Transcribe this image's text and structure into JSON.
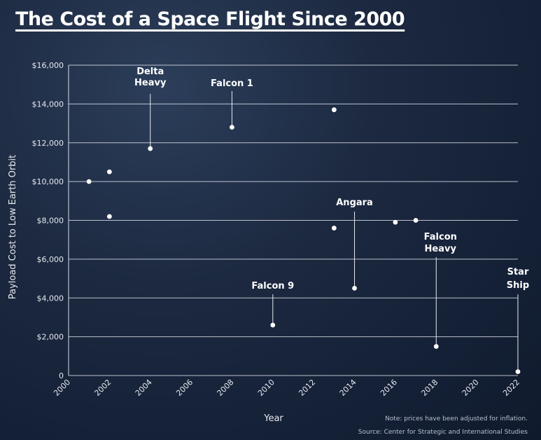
{
  "title": "The Cost of a Space Flight Since 2000",
  "chart_data": {
    "type": "scatter",
    "title": "The Cost of a Space Flight Since 2000",
    "xlabel": "Year",
    "ylabel": "Payload Cost to Low Earth Orbit",
    "xlim": [
      2000,
      2022
    ],
    "ylim": [
      0,
      16000
    ],
    "x_ticks": [
      "2000",
      "2002",
      "2004",
      "2006",
      "2008",
      "2010",
      "2012",
      "2014",
      "2016",
      "2018",
      "2020",
      "2022"
    ],
    "y_ticks": [
      "0",
      "$2,000",
      "$4,000",
      "$6,000",
      "$8,000",
      "$10,000",
      "$12,000",
      "$14,000",
      "$16,000"
    ],
    "y_tick_values": [
      0,
      2000,
      4000,
      6000,
      8000,
      10000,
      12000,
      14000,
      16000
    ],
    "x_tick_values": [
      2000,
      2002,
      2004,
      2006,
      2008,
      2010,
      2012,
      2014,
      2016,
      2018,
      2020,
      2022
    ],
    "grid": "horizontal",
    "points": [
      {
        "x": 2001,
        "y": 10000
      },
      {
        "x": 2002,
        "y": 10500
      },
      {
        "x": 2002,
        "y": 8200
      },
      {
        "x": 2004,
        "y": 11700,
        "label": "Delta Heavy"
      },
      {
        "x": 2008,
        "y": 12800,
        "label": "Falcon 1"
      },
      {
        "x": 2010,
        "y": 2600,
        "label": "Falcon 9"
      },
      {
        "x": 2013,
        "y": 13700
      },
      {
        "x": 2013,
        "y": 7600
      },
      {
        "x": 2014,
        "y": 4500,
        "label": "Angara"
      },
      {
        "x": 2016,
        "y": 7900
      },
      {
        "x": 2017,
        "y": 8000
      },
      {
        "x": 2018,
        "y": 1500,
        "label": "Falcon Heavy"
      },
      {
        "x": 2022,
        "y": 200,
        "label": "Star Ship"
      }
    ],
    "notes": [
      "Note: prices have been adjusted for inflation.",
      "Source: Center for Strategic and International Studies"
    ]
  }
}
